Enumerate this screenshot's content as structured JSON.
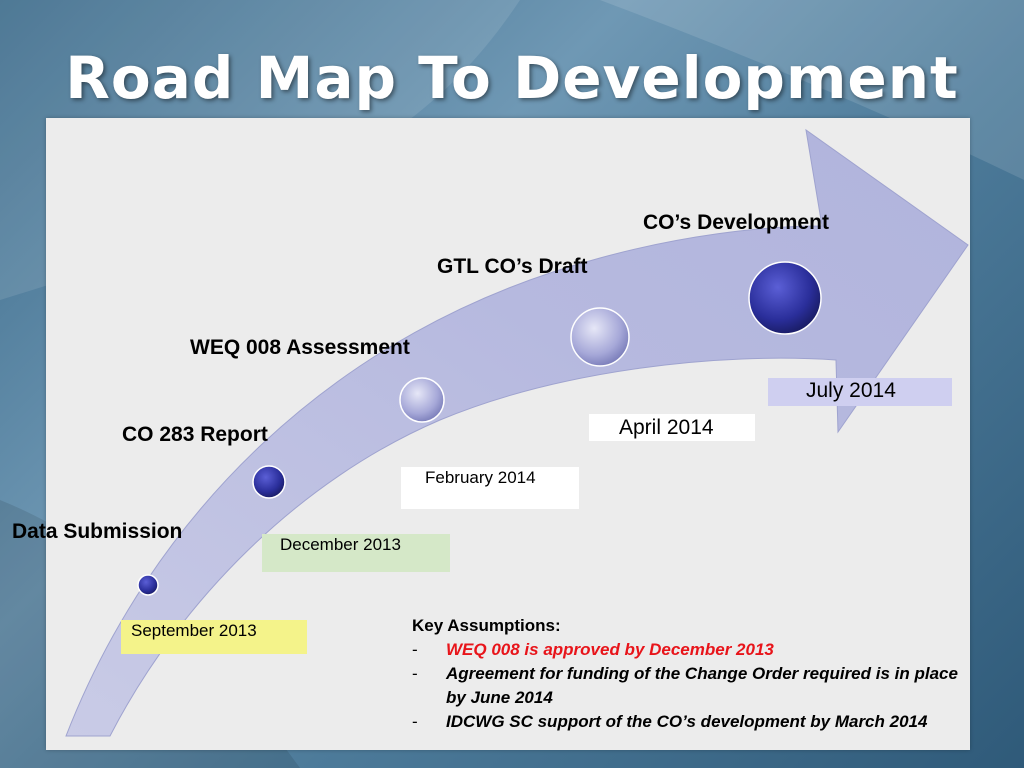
{
  "slide": {
    "title": "Road Map To Development"
  },
  "milestones": [
    {
      "label": "Data Submission",
      "date": "September 2013",
      "date_color": "#f4f38a"
    },
    {
      "label": "CO 283 Report",
      "date": "December 2013",
      "date_color": "#d5e8c8"
    },
    {
      "label": "WEQ 008 Assessment",
      "date": "February 2014",
      "date_color": "#ffffff"
    },
    {
      "label": "GTL CO’s Draft",
      "date": "April 2014",
      "date_color": "#ffffff"
    },
    {
      "label": "CO’s Development",
      "date": "July 2014",
      "date_color": "#cfcff0"
    }
  ],
  "assumptions": {
    "heading": "Key Assumptions:",
    "items": [
      {
        "dash": "-",
        "text": "WEQ 008 is approved by December 2013",
        "color": "#e8141a"
      },
      {
        "dash": "-",
        "text": "Agreement for funding of the Change Order required is in place by June 2014",
        "color": "#000000"
      },
      {
        "dash": "-",
        "text": "IDCWG SC support of the CO’s development by March 2014",
        "color": "#000000"
      }
    ]
  },
  "colors": {
    "arrow_fill": "#b9bde0",
    "dot_dark": "#2a2e9a",
    "dot_light": "#a6a8d8"
  }
}
